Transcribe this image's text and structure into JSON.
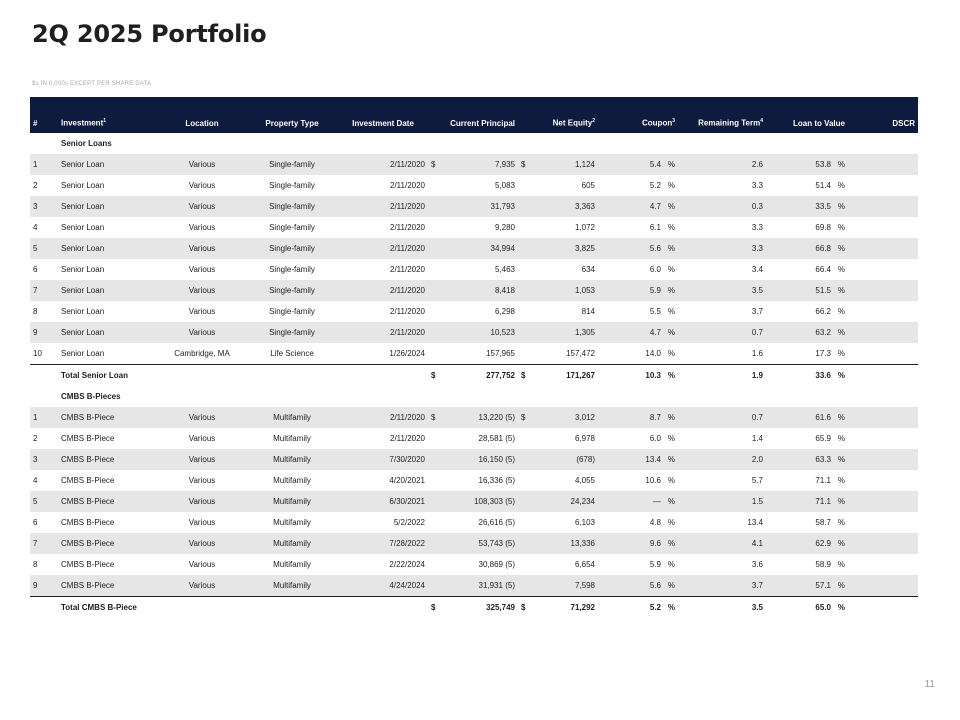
{
  "title": "2Q 2025 Portfolio",
  "subtitle": "$s IN 0,000s EXCEPT PER SHARE DATA",
  "page_number": "11",
  "headers": {
    "num": "#",
    "investment": "Investment",
    "investment_sup": "1",
    "location": "Location",
    "property_type": "Property Type",
    "investment_date": "Investment Date",
    "current_principal": "Current Principal",
    "net_equity": "Net Equity",
    "net_equity_sup": "2",
    "coupon": "Coupon",
    "coupon_sup": "3",
    "remaining_term": "Remaining Term",
    "remaining_term_sup": "4",
    "ltv": "Loan to Value",
    "dscr": "DSCR"
  },
  "sections": [
    {
      "name": "Senior Loans",
      "rows": [
        {
          "num": "1",
          "investment": "Senior Loan",
          "location": "Various",
          "type": "Single-family",
          "date": "2/11/2020",
          "principal_cur": "$",
          "principal": "7,935",
          "equity_cur": "$",
          "equity": "1,124",
          "coupon": "5.4",
          "coupon_unit": "%",
          "term": "2.6",
          "ltv": "53.8",
          "ltv_unit": "%"
        },
        {
          "num": "2",
          "investment": "Senior Loan",
          "location": "Various",
          "type": "Single-family",
          "date": "2/11/2020",
          "principal_cur": "",
          "principal": "5,083",
          "equity_cur": "",
          "equity": "605",
          "coupon": "5.2",
          "coupon_unit": "%",
          "term": "3.3",
          "ltv": "51.4",
          "ltv_unit": "%"
        },
        {
          "num": "3",
          "investment": "Senior Loan",
          "location": "Various",
          "type": "Single-family",
          "date": "2/11/2020",
          "principal_cur": "",
          "principal": "31,793",
          "equity_cur": "",
          "equity": "3,363",
          "coupon": "4.7",
          "coupon_unit": "%",
          "term": "0.3",
          "ltv": "33.5",
          "ltv_unit": "%"
        },
        {
          "num": "4",
          "investment": "Senior Loan",
          "location": "Various",
          "type": "Single-family",
          "date": "2/11/2020",
          "principal_cur": "",
          "principal": "9,280",
          "equity_cur": "",
          "equity": "1,072",
          "coupon": "6.1",
          "coupon_unit": "%",
          "term": "3.3",
          "ltv": "69.8",
          "ltv_unit": "%"
        },
        {
          "num": "5",
          "investment": "Senior Loan",
          "location": "Various",
          "type": "Single-family",
          "date": "2/11/2020",
          "principal_cur": "",
          "principal": "34,994",
          "equity_cur": "",
          "equity": "3,825",
          "coupon": "5.6",
          "coupon_unit": "%",
          "term": "3.3",
          "ltv": "66.8",
          "ltv_unit": "%"
        },
        {
          "num": "6",
          "investment": "Senior Loan",
          "location": "Various",
          "type": "Single-family",
          "date": "2/11/2020",
          "principal_cur": "",
          "principal": "5,463",
          "equity_cur": "",
          "equity": "634",
          "coupon": "6.0",
          "coupon_unit": "%",
          "term": "3.4",
          "ltv": "66.4",
          "ltv_unit": "%"
        },
        {
          "num": "7",
          "investment": "Senior Loan",
          "location": "Various",
          "type": "Single-family",
          "date": "2/11/2020",
          "principal_cur": "",
          "principal": "8,418",
          "equity_cur": "",
          "equity": "1,053",
          "coupon": "5.9",
          "coupon_unit": "%",
          "term": "3.5",
          "ltv": "51.5",
          "ltv_unit": "%"
        },
        {
          "num": "8",
          "investment": "Senior Loan",
          "location": "Various",
          "type": "Single-family",
          "date": "2/11/2020",
          "principal_cur": "",
          "principal": "6,298",
          "equity_cur": "",
          "equity": "814",
          "coupon": "5.5",
          "coupon_unit": "%",
          "term": "3.7",
          "ltv": "66.2",
          "ltv_unit": "%"
        },
        {
          "num": "9",
          "investment": "Senior Loan",
          "location": "Various",
          "type": "Single-family",
          "date": "2/11/2020",
          "principal_cur": "",
          "principal": "10,523",
          "equity_cur": "",
          "equity": "1,305",
          "coupon": "4.7",
          "coupon_unit": "%",
          "term": "0.7",
          "ltv": "63.2",
          "ltv_unit": "%"
        },
        {
          "num": "10",
          "investment": "Senior Loan",
          "location": "Cambridge, MA",
          "type": "Life Science",
          "date": "1/26/2024",
          "principal_cur": "",
          "principal": "157,965",
          "equity_cur": "",
          "equity": "157,472",
          "coupon": "14.0",
          "coupon_unit": "%",
          "term": "1.6",
          "ltv": "17.3",
          "ltv_unit": "%"
        }
      ],
      "total": {
        "label": "Total Senior Loan",
        "principal_cur": "$",
        "principal": "277,752",
        "equity_cur": "$",
        "equity": "171,267",
        "coupon": "10.3",
        "coupon_unit": "%",
        "term": "1.9",
        "ltv": "33.6",
        "ltv_unit": "%"
      }
    },
    {
      "name": "CMBS B-Pieces",
      "rows": [
        {
          "num": "1",
          "investment": "CMBS B-Piece",
          "location": "Various",
          "type": "Multifamily",
          "date": "2/11/2020",
          "principal_cur": "$",
          "principal": "13,220",
          "principal_note": "(5)",
          "equity_cur": "$",
          "equity": "3,012",
          "coupon": "8.7",
          "coupon_unit": "%",
          "term": "0.7",
          "ltv": "61.6",
          "ltv_unit": "%"
        },
        {
          "num": "2",
          "investment": "CMBS B-Piece",
          "location": "Various",
          "type": "Multifamily",
          "date": "2/11/2020",
          "principal_cur": "",
          "principal": "28,581",
          "principal_note": "(5)",
          "equity_cur": "",
          "equity": "6,978",
          "coupon": "6.0",
          "coupon_unit": "%",
          "term": "1.4",
          "ltv": "65.9",
          "ltv_unit": "%"
        },
        {
          "num": "3",
          "investment": "CMBS B-Piece",
          "location": "Various",
          "type": "Multifamily",
          "date": "7/30/2020",
          "principal_cur": "",
          "principal": "16,150",
          "principal_note": "(5)",
          "equity_cur": "",
          "equity": "(678)",
          "coupon": "13.4",
          "coupon_unit": "%",
          "term": "2.0",
          "ltv": "63.3",
          "ltv_unit": "%"
        },
        {
          "num": "4",
          "investment": "CMBS B-Piece",
          "location": "Various",
          "type": "Multifamily",
          "date": "4/20/2021",
          "principal_cur": "",
          "principal": "16,336",
          "principal_note": "(5)",
          "equity_cur": "",
          "equity": "4,055",
          "coupon": "10.6",
          "coupon_unit": "%",
          "term": "5.7",
          "ltv": "71.1",
          "ltv_unit": "%"
        },
        {
          "num": "5",
          "investment": "CMBS B-Piece",
          "location": "Various",
          "type": "Multifamily",
          "date": "6/30/2021",
          "principal_cur": "",
          "principal": "108,303",
          "principal_note": "(5)",
          "equity_cur": "",
          "equity": "24,234",
          "coupon": "—",
          "coupon_unit": "%",
          "term": "1.5",
          "ltv": "71.1",
          "ltv_unit": "%"
        },
        {
          "num": "6",
          "investment": "CMBS B-Piece",
          "location": "Various",
          "type": "Multifamily",
          "date": "5/2/2022",
          "principal_cur": "",
          "principal": "26,616",
          "principal_note": "(5)",
          "equity_cur": "",
          "equity": "6,103",
          "coupon": "4.8",
          "coupon_unit": "%",
          "term": "13.4",
          "ltv": "58.7",
          "ltv_unit": "%"
        },
        {
          "num": "7",
          "investment": "CMBS B-Piece",
          "location": "Various",
          "type": "Multifamily",
          "date": "7/28/2022",
          "principal_cur": "",
          "principal": "53,743",
          "principal_note": "(5)",
          "equity_cur": "",
          "equity": "13,336",
          "coupon": "9.6",
          "coupon_unit": "%",
          "term": "4.1",
          "ltv": "62.9",
          "ltv_unit": "%"
        },
        {
          "num": "8",
          "investment": "CMBS B-Piece",
          "location": "Various",
          "type": "Multifamily",
          "date": "2/22/2024",
          "principal_cur": "",
          "principal": "30,869",
          "principal_note": "(5)",
          "equity_cur": "",
          "equity": "6,654",
          "coupon": "5.9",
          "coupon_unit": "%",
          "term": "3.6",
          "ltv": "58.9",
          "ltv_unit": "%"
        },
        {
          "num": "9",
          "investment": "CMBS B-Piece",
          "location": "Various",
          "type": "Multifamily",
          "date": "4/24/2024",
          "principal_cur": "",
          "principal": "31,931",
          "principal_note": "(5)",
          "equity_cur": "",
          "equity": "7,598",
          "coupon": "5.6",
          "coupon_unit": "%",
          "term": "3.7",
          "ltv": "57.1",
          "ltv_unit": "%"
        }
      ],
      "total": {
        "label": "Total CMBS B-Piece",
        "principal_cur": "$",
        "principal": "325,749",
        "equity_cur": "$",
        "equity": "71,292",
        "coupon": "5.2",
        "coupon_unit": "%",
        "term": "3.5",
        "ltv": "65.0",
        "ltv_unit": "%"
      }
    }
  ]
}
